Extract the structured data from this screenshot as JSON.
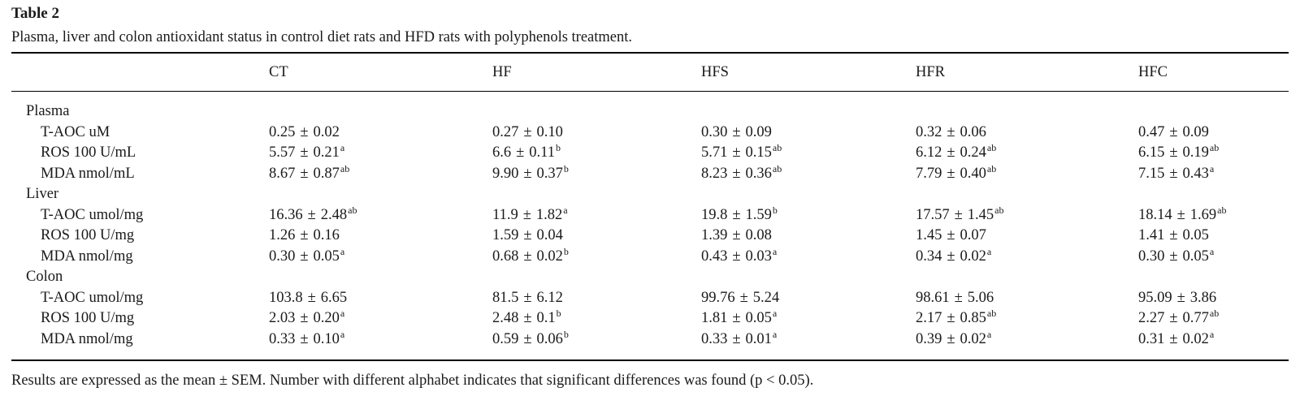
{
  "table": {
    "label": "Table 2",
    "caption": "Plasma, liver and colon antioxidant status in control diet rats and HFD rats with polyphenols treatment.",
    "columns": [
      "",
      "CT",
      "HF",
      "HFS",
      "HFR",
      "HFC"
    ],
    "sections": [
      {
        "name": "Plasma",
        "rows": [
          {
            "label": "T-AOC uM",
            "cells": [
              {
                "mean": "0.25",
                "sem": "0.02",
                "sup": ""
              },
              {
                "mean": "0.27",
                "sem": "0.10",
                "sup": ""
              },
              {
                "mean": "0.30",
                "sem": "0.09",
                "sup": ""
              },
              {
                "mean": "0.32",
                "sem": "0.06",
                "sup": ""
              },
              {
                "mean": "0.47",
                "sem": "0.09",
                "sup": ""
              }
            ]
          },
          {
            "label": "ROS 100 U/mL",
            "cells": [
              {
                "mean": "5.57",
                "sem": "0.21",
                "sup": "a"
              },
              {
                "mean": "6.6",
                "sem": "0.11",
                "sup": "b"
              },
              {
                "mean": "5.71",
                "sem": "0.15",
                "sup": "ab"
              },
              {
                "mean": "6.12",
                "sem": "0.24",
                "sup": "ab"
              },
              {
                "mean": "6.15",
                "sem": "0.19",
                "sup": "ab"
              }
            ]
          },
          {
            "label": "MDA nmol/mL",
            "cells": [
              {
                "mean": "8.67",
                "sem": "0.87",
                "sup": "ab"
              },
              {
                "mean": "9.90",
                "sem": "0.37",
                "sup": "b"
              },
              {
                "mean": "8.23",
                "sem": "0.36",
                "sup": "ab"
              },
              {
                "mean": "7.79",
                "sem": "0.40",
                "sup": "ab"
              },
              {
                "mean": "7.15",
                "sem": "0.43",
                "sup": "a"
              }
            ]
          }
        ]
      },
      {
        "name": "Liver",
        "rows": [
          {
            "label": "T-AOC umol/mg",
            "cells": [
              {
                "mean": "16.36",
                "sem": "2.48",
                "sup": "ab"
              },
              {
                "mean": "11.9",
                "sem": "1.82",
                "sup": "a"
              },
              {
                "mean": "19.8",
                "sem": "1.59",
                "sup": "b"
              },
              {
                "mean": "17.57",
                "sem": "1.45",
                "sup": "ab"
              },
              {
                "mean": "18.14",
                "sem": "1.69",
                "sup": "ab"
              }
            ]
          },
          {
            "label": "ROS 100 U/mg",
            "cells": [
              {
                "mean": "1.26",
                "sem": "0.16",
                "sup": ""
              },
              {
                "mean": "1.59",
                "sem": "0.04",
                "sup": ""
              },
              {
                "mean": "1.39",
                "sem": "0.08",
                "sup": ""
              },
              {
                "mean": "1.45",
                "sem": "0.07",
                "sup": ""
              },
              {
                "mean": "1.41",
                "sem": "0.05",
                "sup": ""
              }
            ]
          },
          {
            "label": "MDA nmol/mg",
            "cells": [
              {
                "mean": "0.30",
                "sem": "0.05",
                "sup": "a"
              },
              {
                "mean": "0.68",
                "sem": "0.02",
                "sup": "b"
              },
              {
                "mean": "0.43",
                "sem": "0.03",
                "sup": "a"
              },
              {
                "mean": "0.34",
                "sem": "0.02",
                "sup": "a"
              },
              {
                "mean": "0.30",
                "sem": "0.05",
                "sup": "a"
              }
            ]
          }
        ]
      },
      {
        "name": "Colon",
        "rows": [
          {
            "label": "T-AOC umol/mg",
            "cells": [
              {
                "mean": "103.8",
                "sem": "6.65",
                "sup": ""
              },
              {
                "mean": "81.5",
                "sem": "6.12",
                "sup": ""
              },
              {
                "mean": "99.76",
                "sem": "5.24",
                "sup": ""
              },
              {
                "mean": "98.61",
                "sem": "5.06",
                "sup": ""
              },
              {
                "mean": "95.09",
                "sem": "3.86",
                "sup": ""
              }
            ]
          },
          {
            "label": "ROS 100 U/mg",
            "cells": [
              {
                "mean": "2.03",
                "sem": "0.20",
                "sup": "a"
              },
              {
                "mean": "2.48",
                "sem": "0.1",
                "sup": "b"
              },
              {
                "mean": "1.81",
                "sem": "0.05",
                "sup": "a"
              },
              {
                "mean": "2.17",
                "sem": "0.85",
                "sup": "ab"
              },
              {
                "mean": "2.27",
                "sem": "0.77",
                "sup": "ab"
              }
            ]
          },
          {
            "label": "MDA nmol/mg",
            "cells": [
              {
                "mean": "0.33",
                "sem": "0.10",
                "sup": "a"
              },
              {
                "mean": "0.59",
                "sem": "0.06",
                "sup": "b"
              },
              {
                "mean": "0.33",
                "sem": "0.01",
                "sup": "a"
              },
              {
                "mean": "0.39",
                "sem": "0.02",
                "sup": "a"
              },
              {
                "mean": "0.31",
                "sem": "0.02",
                "sup": "a"
              }
            ]
          }
        ]
      }
    ],
    "pm_symbol": "±",
    "footnote": "Results are expressed as the mean ± SEM. Number with different alphabet indicates that significant differences was found (p < 0.05)."
  }
}
